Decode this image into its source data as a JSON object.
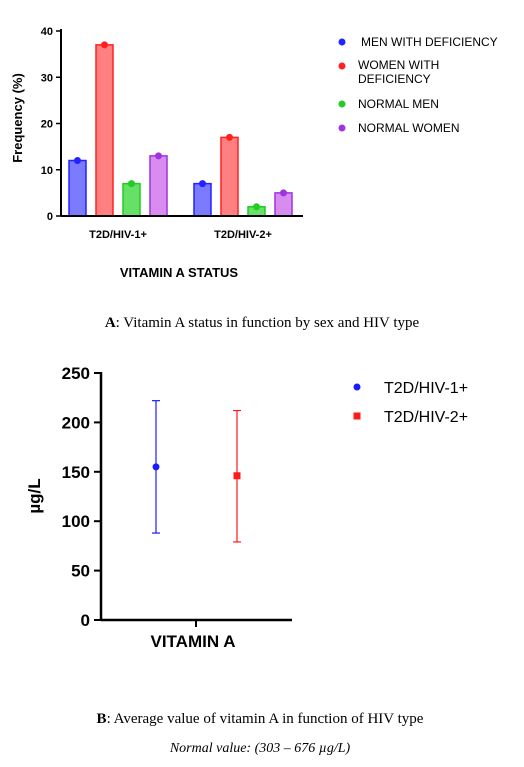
{
  "chart_data": [
    {
      "type": "bar",
      "categories": [
        "T2D/HIV-1+",
        "T2D/HIV-2+"
      ],
      "series": [
        {
          "name": "MEN WITH DEFICIENCY",
          "values": [
            12,
            7
          ],
          "color": "#7b7bff",
          "dot_color": "#2323ff"
        },
        {
          "name": "WOMEN WITH DEFICIENCY",
          "values": [
            37,
            17
          ],
          "color": "#ff8080",
          "dot_color": "#ff2020"
        },
        {
          "name": "NORMAL MEN",
          "values": [
            7,
            2
          ],
          "color": "#66e066",
          "dot_color": "#22cc22"
        },
        {
          "name": "NORMAL WOMEN",
          "values": [
            13,
            5
          ],
          "color": "#d98cf0",
          "dot_color": "#a033e0"
        }
      ],
      "ylabel": "Frequency (%)",
      "xlabel": "VITAMIN A STATUS",
      "ylim": [
        0,
        40
      ],
      "yticks": [
        0,
        10,
        20,
        30,
        40
      ],
      "legend_position": "right"
    },
    {
      "type": "scatter",
      "categories": [
        "VITAMIN A"
      ],
      "series": [
        {
          "name": "T2D/HIV-1+",
          "mean": 155,
          "low": 88,
          "high": 222,
          "color": "#1a1aff",
          "marker": "circle"
        },
        {
          "name": "T2D/HIV-2+",
          "mean": 146,
          "low": 79,
          "high": 212,
          "color": "#ff1a1a",
          "marker": "square"
        }
      ],
      "ylabel": "µg/L",
      "ylim": [
        0,
        250
      ],
      "yticks": [
        0,
        50,
        100,
        150,
        200,
        250
      ],
      "legend_position": "top-right"
    }
  ],
  "captions": {
    "a_label": "A",
    "a_text": ": Vitamin A status in function by sex and HIV type",
    "b_label": "B",
    "b_text": ": Average value of vitamin A in function of HIV type",
    "normal_value": "Normal value: (303 – 676 µg/L)"
  },
  "legend_a": {
    "item3_line1": "WOMEN WITH",
    "item3_line2": "DEFICIENCY"
  }
}
